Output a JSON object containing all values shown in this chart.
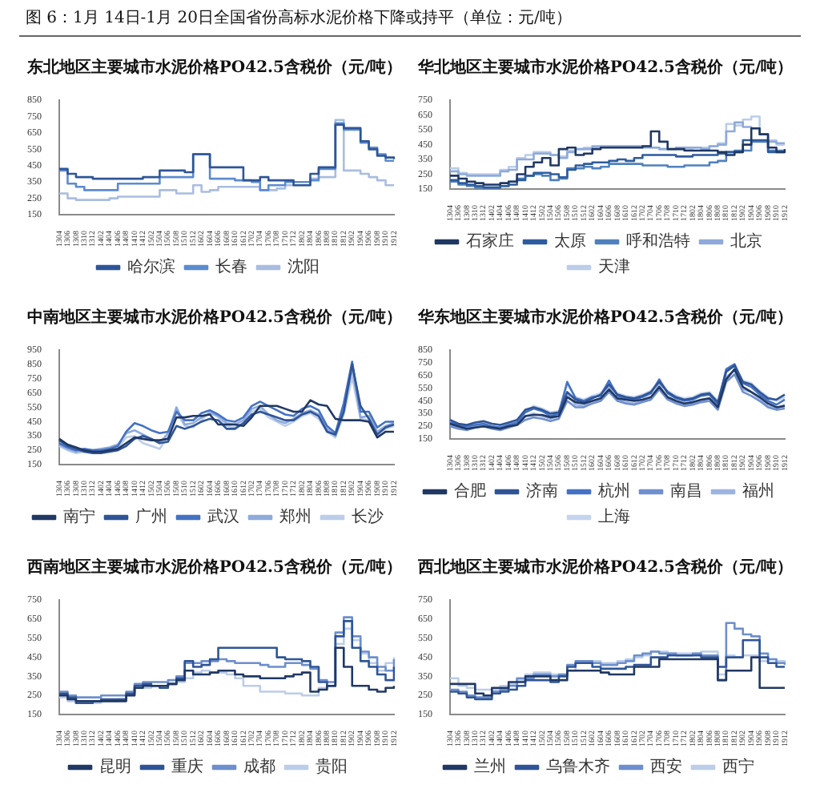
{
  "chart_data": [
    {
      "type": "step",
      "title": "东北地区主要城市水泥价格PO42.5含税价（元/吨）",
      "annotations": [
        "图 6：1月 14日-1月 20日全国省份高标水泥价格下降或持平（单位：元/吨）"
      ],
      "categories": [
        "1304",
        "1306",
        "1308",
        "1310",
        "1312",
        "1402",
        "1404",
        "1406",
        "1408",
        "1410",
        "1412",
        "1502",
        "1504",
        "1506",
        "1508",
        "1510",
        "1512",
        "1602",
        "1604",
        "1606",
        "1608",
        "1610",
        "1612",
        "1702",
        "1704",
        "1706",
        "1708",
        "1710",
        "1712",
        "1802",
        "1804",
        "1806",
        "1808",
        "1810",
        "1812",
        "1902",
        "1904",
        "1906",
        "1908",
        "1910",
        "1912"
      ],
      "ylim": [
        150,
        850
      ],
      "yticks": [
        150,
        250,
        350,
        450,
        550,
        650,
        750,
        850
      ],
      "legend": "bottom",
      "series": [
        {
          "name": "哈尔滨",
          "color": "#2f5597",
          "values": [
            430,
            400,
            380,
            380,
            370,
            370,
            370,
            370,
            370,
            370,
            380,
            380,
            420,
            420,
            420,
            410,
            520,
            520,
            440,
            440,
            440,
            440,
            360,
            360,
            380,
            360,
            360,
            360,
            330,
            330,
            400,
            440,
            440,
            700,
            680,
            680,
            600,
            550,
            510,
            500,
            490
          ]
        },
        {
          "name": "长春",
          "color": "#5b8bd0",
          "values": [
            420,
            340,
            320,
            300,
            300,
            300,
            300,
            340,
            340,
            340,
            340,
            340,
            380,
            380,
            380,
            380,
            520,
            520,
            370,
            370,
            370,
            360,
            360,
            350,
            300,
            330,
            330,
            350,
            350,
            350,
            360,
            430,
            430,
            710,
            670,
            670,
            590,
            560,
            520,
            480,
            480
          ]
        },
        {
          "name": "沈阳",
          "color": "#a9bde0",
          "values": [
            280,
            250,
            240,
            240,
            240,
            240,
            250,
            260,
            260,
            260,
            260,
            260,
            300,
            300,
            280,
            280,
            330,
            290,
            300,
            320,
            320,
            320,
            320,
            320,
            300,
            300,
            310,
            330,
            330,
            330,
            370,
            380,
            380,
            730,
            420,
            420,
            400,
            380,
            360,
            330,
            330
          ]
        }
      ]
    },
    {
      "type": "step",
      "title": "华北地区主要城市水泥价格PO42.5含税价（元/吨）",
      "categories": [
        "1304",
        "1306",
        "1308",
        "1310",
        "1312",
        "1402",
        "1404",
        "1406",
        "1408",
        "1410",
        "1412",
        "1502",
        "1504",
        "1506",
        "1508",
        "1510",
        "1512",
        "1602",
        "1604",
        "1606",
        "1608",
        "1610",
        "1612",
        "1702",
        "1704",
        "1706",
        "1708",
        "1710",
        "1712",
        "1802",
        "1804",
        "1806",
        "1808",
        "1810",
        "1812",
        "1902",
        "1904",
        "1906",
        "1908",
        "1910",
        "1912"
      ],
      "ylim": [
        150,
        750
      ],
      "yticks": [
        150,
        250,
        350,
        450,
        550,
        650,
        750
      ],
      "legend": "bottom",
      "series": [
        {
          "name": "石家庄",
          "color": "#1f3864",
          "values": [
            240,
            220,
            200,
            190,
            180,
            180,
            190,
            200,
            250,
            300,
            330,
            360,
            310,
            420,
            430,
            380,
            390,
            420,
            430,
            430,
            430,
            430,
            430,
            440,
            540,
            470,
            420,
            420,
            410,
            410,
            410,
            410,
            400,
            380,
            400,
            450,
            560,
            520,
            430,
            400,
            420
          ]
        },
        {
          "name": "太原",
          "color": "#2e5c9e",
          "values": [
            210,
            190,
            180,
            170,
            160,
            160,
            170,
            180,
            210,
            240,
            260,
            260,
            250,
            230,
            280,
            310,
            320,
            330,
            330,
            340,
            350,
            340,
            360,
            380,
            380,
            380,
            380,
            370,
            370,
            380,
            380,
            380,
            390,
            400,
            400,
            480,
            480,
            480,
            400,
            400,
            410
          ]
        },
        {
          "name": "呼和浩特",
          "color": "#4f81bd",
          "values": [
            200,
            180,
            170,
            160,
            160,
            160,
            170,
            200,
            220,
            240,
            250,
            240,
            210,
            220,
            290,
            290,
            300,
            290,
            300,
            320,
            320,
            320,
            320,
            310,
            310,
            310,
            300,
            300,
            310,
            310,
            310,
            330,
            340,
            400,
            410,
            410,
            470,
            470,
            410,
            410,
            420
          ]
        },
        {
          "name": "北京",
          "color": "#8eaadb",
          "values": [
            270,
            250,
            240,
            240,
            240,
            240,
            270,
            280,
            350,
            350,
            390,
            390,
            380,
            360,
            400,
            420,
            420,
            440,
            440,
            440,
            440,
            440,
            440,
            430,
            430,
            420,
            420,
            430,
            430,
            430,
            420,
            440,
            450,
            540,
            600,
            570,
            560,
            520,
            470,
            460,
            460
          ]
        },
        {
          "name": "天津",
          "color": "#bccde9",
          "values": [
            290,
            260,
            250,
            250,
            250,
            250,
            280,
            300,
            360,
            380,
            400,
            400,
            380,
            370,
            410,
            420,
            430,
            430,
            440,
            440,
            440,
            440,
            440,
            440,
            430,
            420,
            420,
            420,
            420,
            430,
            430,
            440,
            460,
            590,
            580,
            620,
            640,
            520,
            480,
            450,
            450
          ]
        }
      ]
    },
    {
      "type": "line",
      "title": "中南地区主要城市水泥价格PO42.5含税价（元/吨）",
      "categories": [
        "1304",
        "1306",
        "1308",
        "1310",
        "1312",
        "1402",
        "1404",
        "1406",
        "1408",
        "1410",
        "1412",
        "1502",
        "1504",
        "1506",
        "1508",
        "1510",
        "1512",
        "1602",
        "1604",
        "1606",
        "1608",
        "1610",
        "1612",
        "1702",
        "1704",
        "1706",
        "1708",
        "1710",
        "1712",
        "1802",
        "1804",
        "1806",
        "1808",
        "1810",
        "1812",
        "1902",
        "1904",
        "1906",
        "1908",
        "1910",
        "1912"
      ],
      "ylim": [
        150,
        950
      ],
      "yticks": [
        150,
        250,
        350,
        450,
        550,
        650,
        750,
        850,
        950
      ],
      "legend": "bottom",
      "series": [
        {
          "name": "南宁",
          "color": "#203864",
          "values": [
            330,
            290,
            270,
            250,
            240,
            240,
            250,
            260,
            300,
            340,
            330,
            320,
            320,
            330,
            480,
            480,
            490,
            490,
            500,
            430,
            430,
            430,
            420,
            480,
            560,
            560,
            560,
            540,
            520,
            520,
            600,
            570,
            560,
            470,
            460,
            460,
            460,
            450,
            340,
            380,
            380
          ]
        },
        {
          "name": "广州",
          "color": "#2f5597",
          "values": [
            320,
            280,
            260,
            240,
            230,
            230,
            240,
            250,
            280,
            330,
            350,
            330,
            300,
            310,
            420,
            400,
            420,
            450,
            470,
            460,
            400,
            400,
            440,
            500,
            520,
            500,
            480,
            460,
            460,
            500,
            520,
            490,
            380,
            360,
            520,
            850,
            560,
            470,
            360,
            410,
            430
          ]
        },
        {
          "name": "武汉",
          "color": "#4472c4",
          "values": [
            300,
            270,
            250,
            260,
            250,
            250,
            260,
            280,
            380,
            440,
            420,
            390,
            370,
            380,
            520,
            460,
            460,
            510,
            530,
            500,
            460,
            450,
            480,
            560,
            590,
            560,
            530,
            500,
            490,
            540,
            560,
            530,
            420,
            370,
            580,
            870,
            520,
            520,
            410,
            450,
            450
          ]
        },
        {
          "name": "郑州",
          "color": "#8faadc",
          "values": [
            290,
            260,
            240,
            250,
            250,
            260,
            270,
            290,
            370,
            390,
            360,
            330,
            300,
            370,
            550,
            430,
            440,
            480,
            510,
            490,
            440,
            430,
            460,
            540,
            560,
            500,
            460,
            440,
            470,
            510,
            530,
            500,
            400,
            350,
            540,
            820,
            480,
            490,
            380,
            420,
            440
          ]
        },
        {
          "name": "长沙",
          "color": "#bccde9",
          "values": [
            280,
            250,
            230,
            240,
            240,
            250,
            250,
            270,
            340,
            350,
            300,
            280,
            260,
            350,
            520,
            420,
            410,
            460,
            520,
            480,
            420,
            410,
            440,
            520,
            540,
            480,
            450,
            420,
            450,
            490,
            510,
            470,
            380,
            340,
            500,
            760,
            470,
            460,
            370,
            400,
            420
          ]
        }
      ]
    },
    {
      "type": "line",
      "title": "华东地区主要城市水泥价格PO42.5含税价（元/吨）",
      "categories": [
        "1304",
        "1306",
        "1308",
        "1310",
        "1312",
        "1402",
        "1404",
        "1406",
        "1408",
        "1410",
        "1412",
        "1502",
        "1504",
        "1506",
        "1508",
        "1510",
        "1512",
        "1602",
        "1604",
        "1606",
        "1608",
        "1610",
        "1612",
        "1702",
        "1704",
        "1706",
        "1708",
        "1710",
        "1712",
        "1802",
        "1804",
        "1806",
        "1808",
        "1810",
        "1812",
        "1902",
        "1904",
        "1906",
        "1908",
        "1910",
        "1912"
      ],
      "ylim": [
        150,
        850
      ],
      "yticks": [
        150,
        250,
        350,
        450,
        550,
        650,
        750,
        850
      ],
      "legend": "bottom",
      "series": [
        {
          "name": "合肥",
          "color": "#203864",
          "values": [
            270,
            250,
            230,
            240,
            250,
            240,
            230,
            250,
            260,
            330,
            340,
            340,
            320,
            330,
            480,
            440,
            430,
            450,
            470,
            540,
            470,
            460,
            450,
            460,
            480,
            560,
            480,
            450,
            430,
            440,
            460,
            470,
            400,
            620,
            700,
            560,
            520,
            480,
            430,
            400,
            410
          ]
        },
        {
          "name": "济南",
          "color": "#2f5597",
          "values": [
            300,
            270,
            260,
            280,
            290,
            270,
            260,
            280,
            300,
            380,
            400,
            380,
            350,
            360,
            520,
            460,
            440,
            470,
            500,
            580,
            500,
            480,
            470,
            490,
            520,
            600,
            520,
            480,
            460,
            470,
            500,
            510,
            440,
            680,
            730,
            600,
            580,
            520,
            470,
            460,
            500
          ]
        },
        {
          "name": "杭州",
          "color": "#4472c4",
          "values": [
            280,
            260,
            250,
            260,
            270,
            250,
            240,
            260,
            280,
            360,
            390,
            370,
            330,
            350,
            600,
            470,
            450,
            480,
            490,
            610,
            490,
            470,
            460,
            480,
            510,
            620,
            510,
            470,
            450,
            460,
            490,
            500,
            420,
            700,
            740,
            590,
            560,
            500,
            450,
            420,
            460
          ]
        },
        {
          "name": "南昌",
          "color": "#6f8fcf",
          "values": [
            250,
            230,
            220,
            240,
            250,
            230,
            220,
            240,
            260,
            300,
            320,
            310,
            290,
            310,
            450,
            400,
            400,
            430,
            450,
            520,
            450,
            430,
            420,
            440,
            460,
            540,
            460,
            430,
            410,
            420,
            440,
            450,
            380,
            600,
            660,
            520,
            490,
            450,
            400,
            380,
            390
          ]
        },
        {
          "name": "福州",
          "color": "#9db5e0",
          "values": [
            260,
            240,
            240,
            250,
            260,
            250,
            240,
            250,
            270,
            330,
            350,
            330,
            310,
            330,
            500,
            420,
            410,
            450,
            460,
            560,
            460,
            440,
            430,
            450,
            470,
            580,
            470,
            440,
            420,
            430,
            450,
            470,
            400,
            640,
            690,
            540,
            520,
            470,
            410,
            390,
            420
          ]
        },
        {
          "name": "上海",
          "color": "#c5d5ee",
          "values": [
            290,
            270,
            260,
            270,
            280,
            270,
            260,
            270,
            290,
            370,
            410,
            390,
            360,
            370,
            580,
            480,
            460,
            490,
            510,
            600,
            510,
            490,
            480,
            500,
            530,
            610,
            530,
            490,
            470,
            480,
            510,
            520,
            450,
            690,
            720,
            610,
            590,
            530,
            480,
            450,
            480
          ]
        }
      ]
    },
    {
      "type": "step",
      "title": "西南地区主要城市水泥价格PO42.5含税价（元/吨）",
      "categories": [
        "1304",
        "1306",
        "1308",
        "1310",
        "1312",
        "1402",
        "1404",
        "1406",
        "1408",
        "1410",
        "1412",
        "1502",
        "1504",
        "1506",
        "1508",
        "1510",
        "1512",
        "1602",
        "1604",
        "1606",
        "1608",
        "1610",
        "1612",
        "1702",
        "1704",
        "1706",
        "1708",
        "1710",
        "1712",
        "1802",
        "1804",
        "1806",
        "1808",
        "1810",
        "1812",
        "1902",
        "1904",
        "1906",
        "1908",
        "1910",
        "1912"
      ],
      "ylim": [
        150,
        750
      ],
      "yticks": [
        150,
        250,
        350,
        450,
        550,
        650,
        750
      ],
      "legend": "bottom",
      "series": [
        {
          "name": "昆明",
          "color": "#203864",
          "values": [
            250,
            230,
            220,
            220,
            220,
            220,
            220,
            220,
            250,
            290,
            300,
            300,
            300,
            310,
            330,
            380,
            360,
            360,
            370,
            380,
            380,
            360,
            350,
            350,
            340,
            340,
            340,
            350,
            360,
            370,
            270,
            280,
            300,
            500,
            400,
            300,
            300,
            280,
            270,
            290,
            300
          ]
        },
        {
          "name": "重庆",
          "color": "#2f5597",
          "values": [
            260,
            240,
            210,
            210,
            220,
            230,
            230,
            230,
            260,
            300,
            310,
            300,
            290,
            310,
            340,
            430,
            400,
            410,
            440,
            500,
            500,
            500,
            500,
            500,
            500,
            500,
            450,
            440,
            440,
            430,
            400,
            320,
            300,
            560,
            640,
            500,
            430,
            400,
            360,
            330,
            400
          ]
        },
        {
          "name": "成都",
          "color": "#6d8fcd",
          "values": [
            270,
            250,
            240,
            240,
            240,
            250,
            250,
            250,
            270,
            310,
            320,
            320,
            320,
            330,
            350,
            420,
            420,
            430,
            430,
            440,
            430,
            420,
            420,
            420,
            410,
            400,
            400,
            420,
            420,
            410,
            390,
            330,
            320,
            580,
            660,
            560,
            480,
            450,
            400,
            380,
            440
          ]
        },
        {
          "name": "贵阳",
          "color": "#bccde9",
          "values": [
            240,
            220,
            210,
            210,
            210,
            220,
            220,
            230,
            250,
            290,
            290,
            300,
            300,
            310,
            320,
            340,
            370,
            380,
            370,
            370,
            360,
            340,
            300,
            300,
            270,
            270,
            270,
            260,
            260,
            250,
            250,
            290,
            300,
            520,
            600,
            540,
            470,
            420,
            380,
            420,
            450
          ]
        }
      ]
    },
    {
      "type": "step",
      "title": "西北地区主要城市水泥价格PO42.5含税价（元/吨）",
      "categories": [
        "1304",
        "1306",
        "1308",
        "1310",
        "1312",
        "1402",
        "1404",
        "1406",
        "1408",
        "1410",
        "1412",
        "1502",
        "1504",
        "1506",
        "1508",
        "1510",
        "1512",
        "1602",
        "1604",
        "1606",
        "1608",
        "1610",
        "1612",
        "1702",
        "1704",
        "1706",
        "1708",
        "1710",
        "1712",
        "1802",
        "1804",
        "1806",
        "1808",
        "1810",
        "1812",
        "1902",
        "1904",
        "1906",
        "1908",
        "1910",
        "1912"
      ],
      "ylim": [
        150,
        750
      ],
      "yticks": [
        150,
        250,
        350,
        450,
        550,
        650,
        750
      ],
      "legend": "bottom",
      "series": [
        {
          "name": "兰州",
          "color": "#203864",
          "values": [
            310,
            310,
            310,
            260,
            250,
            290,
            290,
            320,
            320,
            350,
            350,
            350,
            330,
            330,
            380,
            380,
            380,
            380,
            370,
            360,
            360,
            360,
            400,
            400,
            400,
            440,
            440,
            440,
            440,
            440,
            440,
            440,
            330,
            380,
            380,
            380,
            450,
            290,
            290,
            290,
            290
          ]
        },
        {
          "name": "乌鲁木齐",
          "color": "#2f5597",
          "values": [
            270,
            260,
            240,
            230,
            230,
            260,
            270,
            280,
            300,
            330,
            330,
            330,
            320,
            350,
            400,
            420,
            420,
            400,
            390,
            390,
            390,
            400,
            410,
            410,
            450,
            450,
            460,
            460,
            460,
            460,
            450,
            450,
            400,
            450,
            450,
            540,
            540,
            450,
            420,
            400,
            400
          ]
        },
        {
          "name": "西安",
          "color": "#6d8fcd",
          "values": [
            280,
            270,
            250,
            240,
            240,
            270,
            280,
            300,
            340,
            340,
            360,
            360,
            350,
            360,
            410,
            430,
            430,
            420,
            410,
            410,
            420,
            430,
            460,
            470,
            480,
            470,
            470,
            460,
            460,
            470,
            460,
            460,
            330,
            630,
            600,
            570,
            560,
            470,
            440,
            420,
            410
          ]
        },
        {
          "name": "西宁",
          "color": "#bccde9",
          "values": [
            340,
            300,
            290,
            280,
            280,
            280,
            300,
            310,
            330,
            360,
            370,
            370,
            360,
            360,
            380,
            420,
            430,
            430,
            420,
            420,
            430,
            440,
            450,
            460,
            480,
            480,
            470,
            470,
            470,
            470,
            480,
            480,
            360,
            460,
            450,
            460,
            460,
            430,
            440,
            430,
            420
          ]
        }
      ]
    }
  ]
}
